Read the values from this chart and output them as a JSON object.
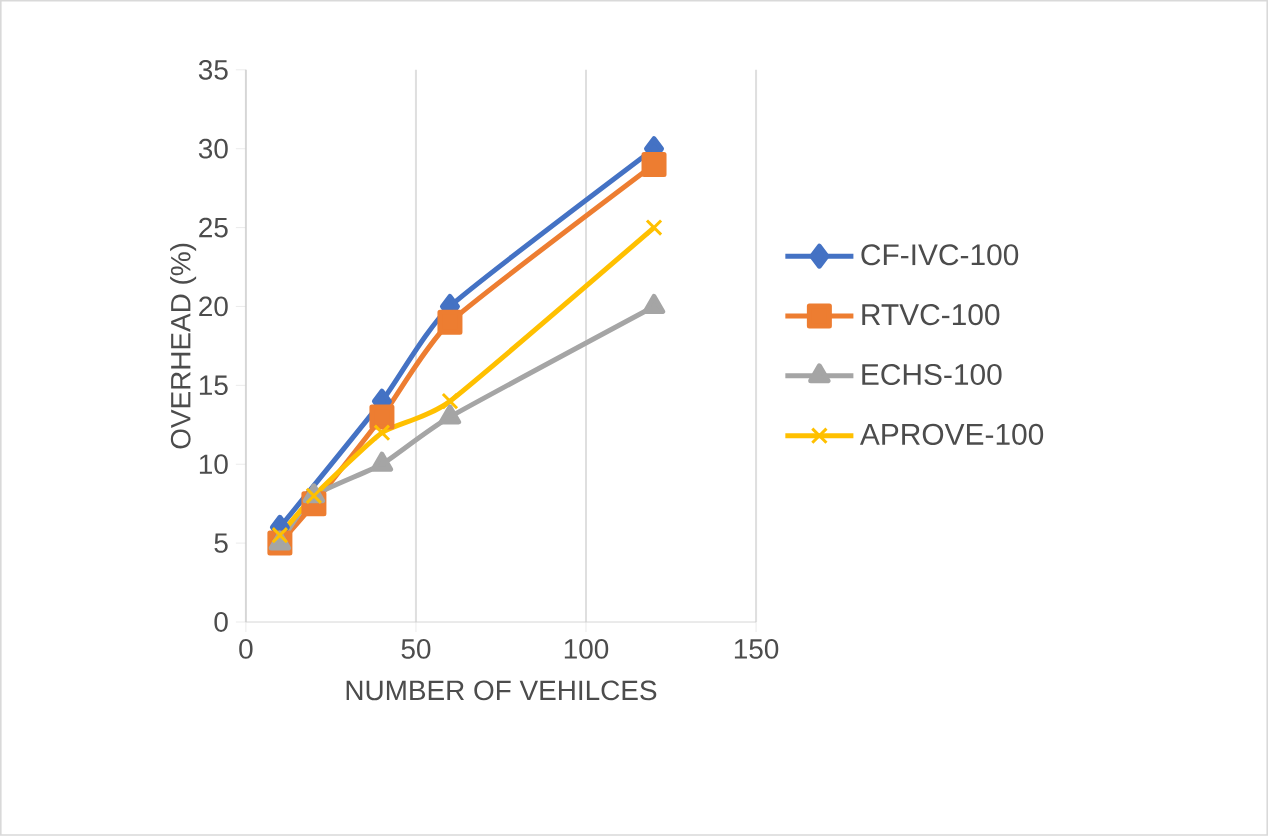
{
  "chart_data": {
    "type": "line",
    "xlabel": "NUMBER OF VEHILCES",
    "ylabel": "OVERHEAD (%)",
    "x": [
      10,
      20,
      40,
      60,
      120
    ],
    "series": [
      {
        "name": "CF-IVC-100",
        "color": "#4472c4",
        "marker": "diamond",
        "values": [
          6,
          null,
          14,
          20,
          30
        ]
      },
      {
        "name": "RTVC-100",
        "color": "#ed7d31",
        "marker": "square",
        "values": [
          5,
          7.5,
          13,
          19,
          29
        ]
      },
      {
        "name": "ECHS-100",
        "color": "#a5a5a5",
        "marker": "triangle",
        "values": [
          5,
          8,
          10,
          13,
          20
        ]
      },
      {
        "name": "APROVE-100",
        "color": "#ffc000",
        "marker": "cross",
        "values": [
          5.5,
          8,
          12,
          14,
          25
        ]
      }
    ],
    "xlim": [
      0,
      150
    ],
    "xticks": [
      0,
      50,
      100,
      150
    ],
    "ylim": [
      0,
      35
    ],
    "yticks": [
      0,
      5,
      10,
      15,
      20,
      25,
      30,
      35
    ],
    "grid": "x",
    "legend": "right"
  }
}
